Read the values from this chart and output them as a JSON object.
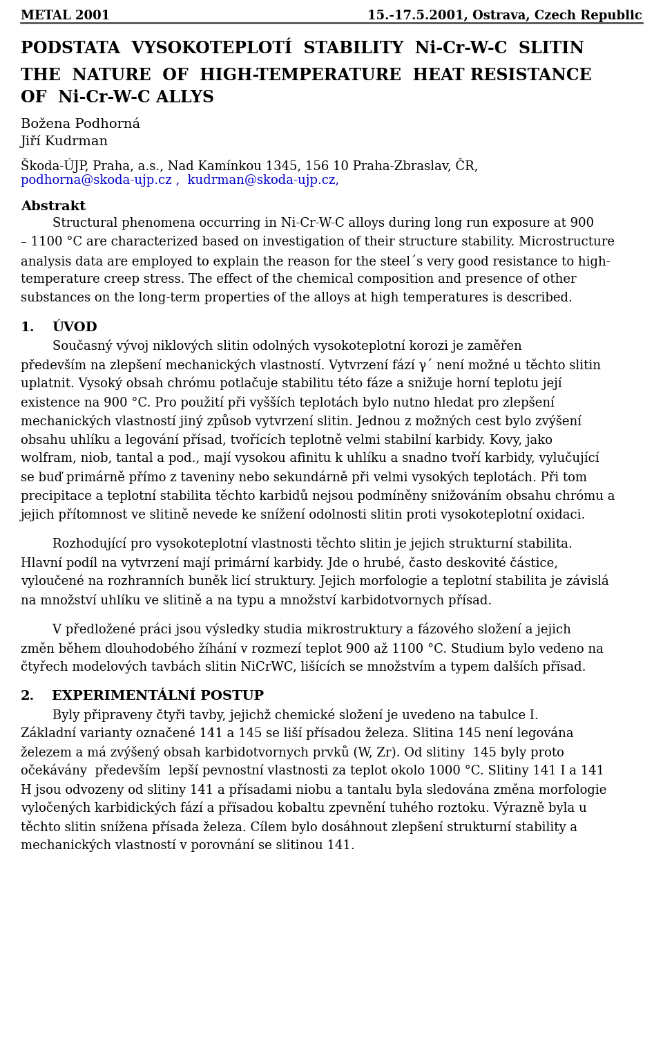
{
  "bg_color": "#ffffff",
  "text_color": "#000000",
  "link_color": "#0000cc",
  "header_left": "METAL 2001",
  "header_right": "15.-17.5.2001, Ostrava, Czech Republic",
  "title_cz": "PODSTATA  VYSOKOTEPLOTÍ  STABILITY  Ni-Cr-W-C  SLITIN",
  "title_en_line1": "THE  NATURE  OF  HIGH-TEMPERATURE  HEAT RESISTANCE",
  "title_en_line2": "OF  Ni-Cr-W-C ALLYS",
  "author1": "Božena Podhorná",
  "author2": "Jiří Kudrman",
  "affiliation": "Škoda-ÚJP, Praha, a.s., Nad Kamínkou 1345, 156 10 Praha-Zbraslav, ČR,",
  "email1": "podhorna@skoda-ujp.cz ,",
  "email2": "  kudrman@skoda-ujp.cz,",
  "section_abstrakt": "Abstrakt",
  "abstrakt_lines": [
    "        Structural phenomena occurring in Ni-Cr-W-C alloys during long run exposure at 900",
    "– 1100 °C are characterized based on investigation of their structure stability. Microstructure",
    "analysis data are employed to explain the reason for the steel´s very good resistance to high-",
    "temperature creep stress. The effect of the chemical composition and presence of other",
    "substances on the long-term properties of the alloys at high temperatures is described."
  ],
  "section1_num": "1.",
  "section1_title": "ÚVOD",
  "section1_lines": [
    "        Současný vývoj niklových slitin odolných vysokoteplotní korozi je zaměřen",
    "především na zlepšení mechanických vlastností. Vytvrzení fází γ´ není možné u těchto slitin",
    "uplatnit. Vysoký obsah chrómu potlačuje stabilitu této fáze a snižuje horní teplotu její",
    "existence na 900 °C. Pro použití při vyšších teplotách bylo nutno hledat pro zlepšení",
    "mechanických vlastností jiný způsob vytvrzení slitin. Jednou z možných cest bylo zvýšení",
    "obsahu uhlíku a legování přísad, tvořících teplotně velmi stabilní karbidy. Kovy, jako",
    "wolfram, niob, tantal a pod., mají vysokou afinitu k uhlíku a snadno tvoří karbidy, vylučující",
    "se buď primárně přímo z taveniny nebo sekundárně při velmi vysokých teplotách. Při tom",
    "precipitace a teplotní stabilita těchto karbidů nejsou podmíněny snižováním obsahu chrómu a",
    "jejich přítomnost ve slitině nevede ke snížení odolnosti slitin proti vysokoteplotní oxidaci."
  ],
  "para2_lines": [
    "        Rozhodující pro vysokoteplotní vlastnosti těchto slitin je jejich strukturní stabilita.",
    "Hlavní podíl na vytvrzení mají primární karbidy. Jde o hrubé, často deskovité částice,",
    "vyloučené na rozhranních buněk licí struktury. Jejich morfologie a teplotní stabilita je závislá",
    "na množství uhlíku ve slitině a na typu a množství karbidotvornych přísad."
  ],
  "para3_lines": [
    "        V předložené práci jsou výsledky studia mikrostruktury a fázového složení a jejich",
    "změn během dlouhodobého žíhání v rozmezí teplot 900 až 1100 °C. Studium bylo vedeno na",
    "čtyřech modelových tavbách slitin NiCrWC, lišících se množstvím a typem dalších přïsad."
  ],
  "section2_num": "2.",
  "section2_title": "EXPERIMENTÁLNÍ POSTUP",
  "section2_lines": [
    "        Byly připraveny čtyři tavby, jejichž chemické složení je uvedeno na tabulce I.",
    "Základní varianty označené 141 a 145 se liší přísadou železa. Slitina 145 není legována",
    "železem a má zvýšený obsah karbidotvornych prvků (W, Zr). Od slitiny  145 byly proto",
    "očekávány  především  lepší pevnostní vlastnosti za teplot okolo 1000 °C. Slitiny 141 I a 141",
    "H jsou odvozeny od slitiny 141 a přísadami niobu a tantalu byla sledována změna morfologie",
    "vyločených karbidických fází a přïsadou kobaltu zpevnění tuhého roztoku. Výrazně byla u",
    "těchto slitin snížena přísada železa. Cílem bylo dosáhnout zlepšení strukturní stability a",
    "mechanických vlastností v porovnání se slitinou 141."
  ]
}
